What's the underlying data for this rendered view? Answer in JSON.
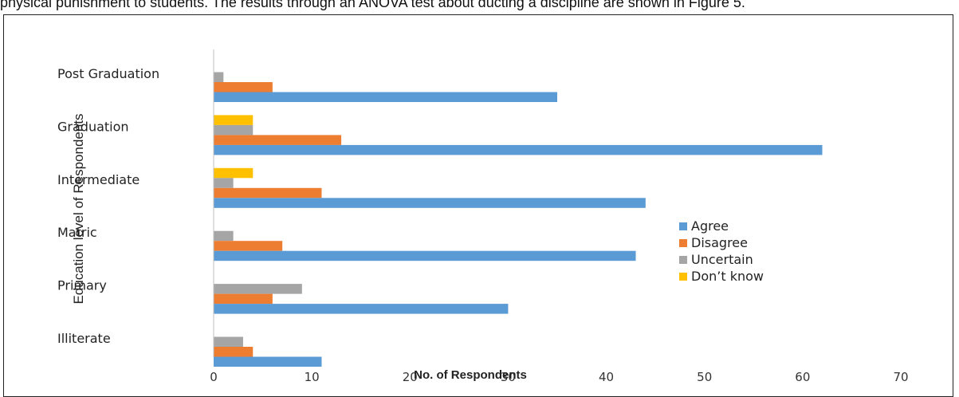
{
  "caption_fragment": "physical punishment to students. The results through an ANOVA test about ducting a discipline are shown in Figure 5.",
  "chart_data": {
    "type": "bar",
    "orientation": "horizontal",
    "categories": [
      "Post Graduation",
      "Graduation",
      "Intermediate",
      "Matric",
      "Primary",
      "Illiterate"
    ],
    "series": [
      {
        "name": "Agree",
        "color": "#5b9bd5",
        "values": [
          35,
          62,
          44,
          43,
          30,
          11
        ]
      },
      {
        "name": "Disagree",
        "color": "#ed7d31",
        "values": [
          6,
          13,
          11,
          7,
          6,
          4
        ]
      },
      {
        "name": "Uncertain",
        "color": "#a5a5a5",
        "values": [
          1,
          4,
          2,
          2,
          9,
          3
        ]
      },
      {
        "name": "Don’t know",
        "color": "#ffc000",
        "values": [
          0,
          4,
          4,
          0,
          0,
          0
        ]
      }
    ],
    "xlabel": "No. of Respondents",
    "ylabel": "Education level of Respondents",
    "xlim": [
      0,
      70
    ],
    "xticks": [
      0,
      10,
      20,
      30,
      40,
      50,
      60,
      70
    ],
    "grid": false,
    "legend_position": "right"
  }
}
